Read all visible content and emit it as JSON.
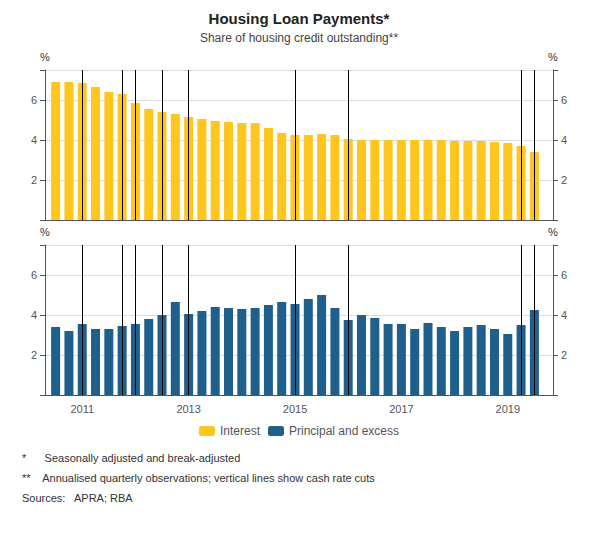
{
  "chart_data": [
    {
      "type": "bar",
      "title": "Housing Loan Payments*",
      "subtitle": "Share of housing credit outstanding**",
      "x": [
        2010.5,
        2010.75,
        2011.0,
        2011.25,
        2011.5,
        2011.75,
        2012.0,
        2012.25,
        2012.5,
        2012.75,
        2013.0,
        2013.25,
        2013.5,
        2013.75,
        2014.0,
        2014.25,
        2014.5,
        2014.75,
        2015.0,
        2015.25,
        2015.5,
        2015.75,
        2016.0,
        2016.25,
        2016.5,
        2016.75,
        2017.0,
        2017.25,
        2017.5,
        2017.75,
        2018.0,
        2018.25,
        2018.5,
        2018.75,
        2019.0,
        2019.25,
        2019.5
      ],
      "series": [
        {
          "name": "Interest",
          "color": "#FFC61E",
          "values": [
            6.9,
            6.9,
            6.85,
            6.65,
            6.4,
            6.3,
            5.85,
            5.55,
            5.4,
            5.3,
            5.15,
            5.05,
            4.95,
            4.9,
            4.85,
            4.85,
            4.6,
            4.35,
            4.25,
            4.25,
            4.3,
            4.25,
            4.05,
            4.0,
            4.0,
            4.0,
            4.0,
            4.0,
            4.0,
            4.0,
            3.95,
            3.95,
            3.95,
            3.9,
            3.85,
            3.7,
            3.4
          ]
        }
      ],
      "vertical_lines": [
        2011.0,
        2011.75,
        2012.0,
        2012.5,
        2013.0,
        2015.0,
        2016.0,
        2019.25,
        2019.5
      ],
      "xlim": [
        2010.3,
        2019.85
      ],
      "ylim": [
        0,
        7.5
      ],
      "yticks": [
        2,
        4,
        6
      ],
      "ylabel": "%",
      "y2lim": [
        0,
        7.5
      ],
      "y2ticks": [
        2,
        4,
        6
      ],
      "y2label": "%",
      "grid": true,
      "tick_labels": "y"
    },
    {
      "type": "bar",
      "x": [
        2010.5,
        2010.75,
        2011.0,
        2011.25,
        2011.5,
        2011.75,
        2012.0,
        2012.25,
        2012.5,
        2012.75,
        2013.0,
        2013.25,
        2013.5,
        2013.75,
        2014.0,
        2014.25,
        2014.5,
        2014.75,
        2015.0,
        2015.25,
        2015.5,
        2015.75,
        2016.0,
        2016.25,
        2016.5,
        2016.75,
        2017.0,
        2017.25,
        2017.5,
        2017.75,
        2018.0,
        2018.25,
        2018.5,
        2018.75,
        2019.0,
        2019.25,
        2019.5
      ],
      "series": [
        {
          "name": "Principal and excess",
          "color": "#1F5F8B",
          "values": [
            3.4,
            3.2,
            3.55,
            3.3,
            3.3,
            3.45,
            3.55,
            3.8,
            4.0,
            4.65,
            4.05,
            4.2,
            4.4,
            4.35,
            4.3,
            4.35,
            4.5,
            4.65,
            4.55,
            4.8,
            5.0,
            4.35,
            3.75,
            4.0,
            3.85,
            3.55,
            3.55,
            3.3,
            3.6,
            3.4,
            3.2,
            3.4,
            3.5,
            3.3,
            3.05,
            3.5,
            4.25
          ]
        }
      ],
      "vertical_lines": [
        2011.0,
        2011.75,
        2012.0,
        2012.5,
        2013.0,
        2015.0,
        2016.0,
        2019.25,
        2019.5
      ],
      "xlim": [
        2010.3,
        2019.85
      ],
      "xticks": [
        2011,
        2013,
        2015,
        2017,
        2019
      ],
      "ylim": [
        0,
        7.5
      ],
      "yticks": [
        2,
        4,
        6
      ],
      "ylabel": "%",
      "y2lim": [
        0,
        7.5
      ],
      "y2ticks": [
        2,
        4,
        6
      ],
      "y2label": "%",
      "grid": true,
      "annotations": [
        "*      Seasonally adjusted and break-adjusted",
        "**    Annualised quarterly observations; vertical lines show cash rate cuts",
        "Sources:   APRA; RBA"
      ]
    }
  ]
}
